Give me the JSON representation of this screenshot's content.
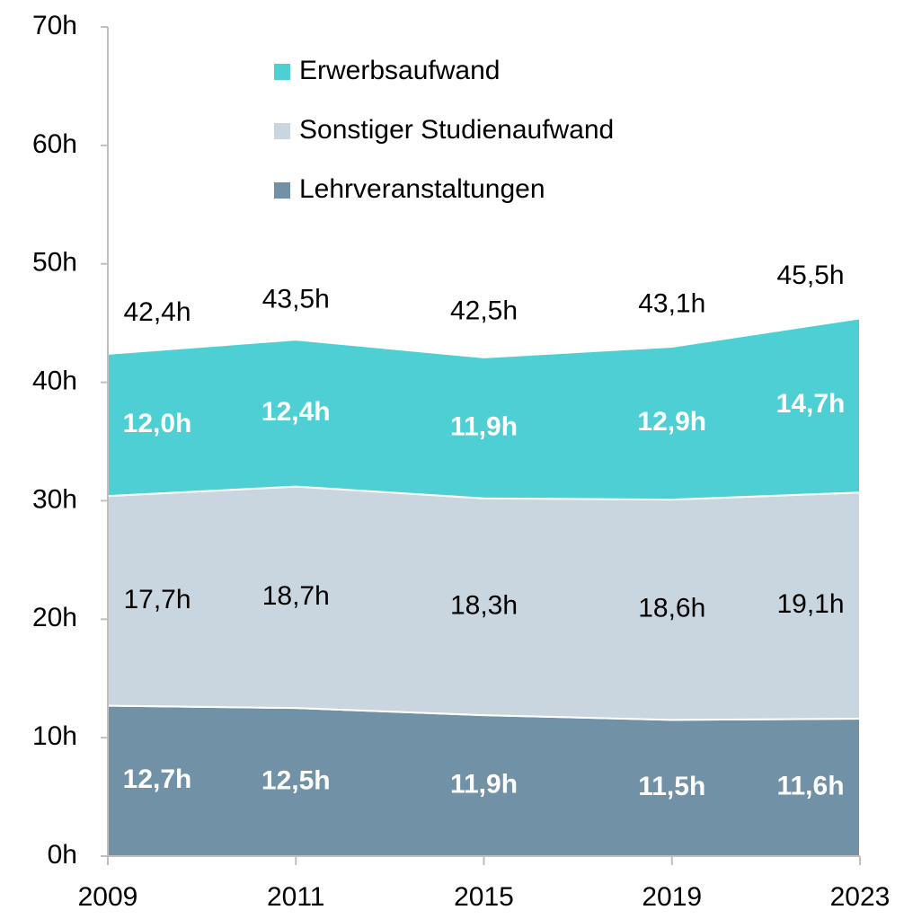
{
  "chart_data": {
    "type": "stacked_area",
    "categories": [
      "2009",
      "2011",
      "2015",
      "2019",
      "2023"
    ],
    "series": [
      {
        "name": "Lehrveranstaltungen",
        "color": "#7191a6",
        "values": [
          12.7,
          12.5,
          11.9,
          11.5,
          11.6
        ],
        "value_labels": [
          "12,7h",
          "12,5h",
          "11,9h",
          "11,5h",
          "11,6h"
        ]
      },
      {
        "name": "Sonstiger Studienaufwand",
        "color": "#cad6df",
        "values": [
          17.7,
          18.7,
          18.3,
          18.6,
          19.1
        ],
        "value_labels": [
          "17,7h",
          "18,7h",
          "18,3h",
          "18,6h",
          "19,1h"
        ]
      },
      {
        "name": "Erwerbsaufwand",
        "color": "#4ecfd3",
        "values": [
          12.0,
          12.4,
          11.9,
          12.9,
          14.7
        ],
        "value_labels": [
          "12,0h",
          "12,4h",
          "11,9h",
          "12,9h",
          "14,7h"
        ]
      }
    ],
    "totals": [
      42.4,
      43.5,
      42.5,
      43.1,
      45.5
    ],
    "total_labels": [
      "42,4h",
      "43,5h",
      "42,5h",
      "43,1h",
      "45,5h"
    ],
    "ylim": [
      0,
      70
    ],
    "yticks": [
      {
        "value": 0,
        "label": "0h"
      },
      {
        "value": 10,
        "label": "10h"
      },
      {
        "value": 20,
        "label": "20h"
      },
      {
        "value": 30,
        "label": "30h"
      },
      {
        "value": 40,
        "label": "40h"
      },
      {
        "value": 50,
        "label": "50h"
      },
      {
        "value": 60,
        "label": "60h"
      },
      {
        "value": 70,
        "label": "70h"
      }
    ],
    "legend": "top"
  }
}
